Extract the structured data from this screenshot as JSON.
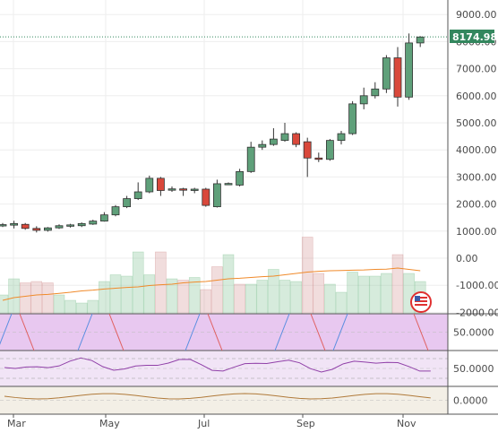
{
  "chart_data": {
    "type": "candlestick",
    "price_axis": {
      "ticks": [
        "9000.00",
        "8000.00",
        "7000.00",
        "6000.00",
        "5000.00",
        "4000.00",
        "3000.00",
        "2000.00",
        "1000.00",
        "0.00",
        "-1000.00",
        "-2000.00"
      ],
      "range": [
        -2000,
        9000
      ]
    },
    "last_price": "8174.98",
    "x_labels": [
      "Mar",
      "May",
      "Jul",
      "Sep",
      "Nov"
    ],
    "candles": [
      {
        "o": 1200,
        "h": 1300,
        "l": 1150,
        "c": 1240
      },
      {
        "o": 1220,
        "h": 1380,
        "l": 1100,
        "c": 1280
      },
      {
        "o": 1250,
        "h": 1300,
        "l": 1050,
        "c": 1100
      },
      {
        "o": 1100,
        "h": 1180,
        "l": 950,
        "c": 1030
      },
      {
        "o": 1030,
        "h": 1150,
        "l": 980,
        "c": 1120
      },
      {
        "o": 1120,
        "h": 1250,
        "l": 1080,
        "c": 1200
      },
      {
        "o": 1180,
        "h": 1270,
        "l": 1130,
        "c": 1230
      },
      {
        "o": 1200,
        "h": 1320,
        "l": 1150,
        "c": 1280
      },
      {
        "o": 1260,
        "h": 1420,
        "l": 1230,
        "c": 1370
      },
      {
        "o": 1370,
        "h": 1700,
        "l": 1350,
        "c": 1600
      },
      {
        "o": 1600,
        "h": 1960,
        "l": 1550,
        "c": 1900
      },
      {
        "o": 1900,
        "h": 2300,
        "l": 1850,
        "c": 2200
      },
      {
        "o": 2200,
        "h": 2800,
        "l": 2150,
        "c": 2450
      },
      {
        "o": 2450,
        "h": 3050,
        "l": 2400,
        "c": 2950
      },
      {
        "o": 2950,
        "h": 3000,
        "l": 2300,
        "c": 2500
      },
      {
        "o": 2520,
        "h": 2650,
        "l": 2450,
        "c": 2560
      },
      {
        "o": 2560,
        "h": 2600,
        "l": 2300,
        "c": 2520
      },
      {
        "o": 2530,
        "h": 2600,
        "l": 2400,
        "c": 2550
      },
      {
        "o": 2550,
        "h": 2600,
        "l": 1900,
        "c": 1950
      },
      {
        "o": 1900,
        "h": 2900,
        "l": 1870,
        "c": 2750
      },
      {
        "o": 2750,
        "h": 2800,
        "l": 2700,
        "c": 2760
      },
      {
        "o": 2700,
        "h": 3300,
        "l": 2650,
        "c": 3200
      },
      {
        "o": 3200,
        "h": 4300,
        "l": 3150,
        "c": 4100
      },
      {
        "o": 4100,
        "h": 4350,
        "l": 4000,
        "c": 4200
      },
      {
        "o": 4200,
        "h": 4800,
        "l": 4150,
        "c": 4400
      },
      {
        "o": 4350,
        "h": 5000,
        "l": 4300,
        "c": 4600
      },
      {
        "o": 4600,
        "h": 4650,
        "l": 4100,
        "c": 4200
      },
      {
        "o": 4300,
        "h": 4450,
        "l": 3000,
        "c": 3700
      },
      {
        "o": 3700,
        "h": 3900,
        "l": 3550,
        "c": 3650
      },
      {
        "o": 3650,
        "h": 4400,
        "l": 3600,
        "c": 4350
      },
      {
        "o": 4350,
        "h": 4700,
        "l": 4200,
        "c": 4600
      },
      {
        "o": 4600,
        "h": 5800,
        "l": 4550,
        "c": 5700
      },
      {
        "o": 5700,
        "h": 6300,
        "l": 5500,
        "c": 6000
      },
      {
        "o": 6000,
        "h": 6500,
        "l": 5900,
        "c": 6250
      },
      {
        "o": 6250,
        "h": 7500,
        "l": 6100,
        "c": 7400
      },
      {
        "o": 7400,
        "h": 7800,
        "l": 5600,
        "c": 5950
      },
      {
        "o": 5950,
        "h": 8300,
        "l": 5850,
        "c": 7950
      },
      {
        "o": 7950,
        "h": 8200,
        "l": 7800,
        "c": 8170
      }
    ],
    "volume": [
      {
        "v": 700,
        "up": true
      },
      {
        "v": 1300,
        "up": true
      },
      {
        "v": 1150,
        "up": false
      },
      {
        "v": 1200,
        "up": false
      },
      {
        "v": 1150,
        "up": false
      },
      {
        "v": 700,
        "up": true
      },
      {
        "v": 500,
        "up": true
      },
      {
        "v": 400,
        "up": true
      },
      {
        "v": 500,
        "up": true
      },
      {
        "v": 1200,
        "up": true
      },
      {
        "v": 1450,
        "up": true
      },
      {
        "v": 1400,
        "up": true
      },
      {
        "v": 2300,
        "up": true
      },
      {
        "v": 1450,
        "up": true
      },
      {
        "v": 2300,
        "up": false
      },
      {
        "v": 1300,
        "up": true
      },
      {
        "v": 1250,
        "up": false
      },
      {
        "v": 1350,
        "up": true
      },
      {
        "v": 900,
        "up": false
      },
      {
        "v": 1750,
        "up": false
      },
      {
        "v": 2200,
        "up": true
      },
      {
        "v": 1100,
        "up": false
      },
      {
        "v": 1100,
        "up": true
      },
      {
        "v": 1250,
        "up": true
      },
      {
        "v": 1650,
        "up": true
      },
      {
        "v": 1250,
        "up": true
      },
      {
        "v": 1200,
        "up": true
      },
      {
        "v": 2850,
        "up": false
      },
      {
        "v": 1500,
        "up": false
      },
      {
        "v": 1100,
        "up": true
      },
      {
        "v": 800,
        "up": true
      },
      {
        "v": 1550,
        "up": true
      },
      {
        "v": 1400,
        "up": true
      },
      {
        "v": 1400,
        "up": true
      },
      {
        "v": 1500,
        "up": true
      },
      {
        "v": 2200,
        "up": false
      },
      {
        "v": 1500,
        "up": true
      },
      {
        "v": 1200,
        "up": true
      }
    ],
    "volume_ma": [
      500,
      600,
      650,
      700,
      720,
      760,
      800,
      850,
      880,
      920,
      950,
      980,
      1000,
      1050,
      1080,
      1100,
      1150,
      1180,
      1200,
      1250,
      1300,
      1320,
      1350,
      1380,
      1400,
      1450,
      1500,
      1550,
      1580,
      1600,
      1610,
      1620,
      1630,
      1650,
      1660,
      1700,
      1650,
      1600
    ],
    "indicators": [
      {
        "id": "ind1",
        "label": "50.0000",
        "bg": "#e8c8f0"
      },
      {
        "id": "ind2",
        "label": "50.0000",
        "bg": "#f1e4f6"
      },
      {
        "id": "ind3",
        "label": "0.0000",
        "bg": "#f3efe6"
      }
    ],
    "grid": true
  }
}
